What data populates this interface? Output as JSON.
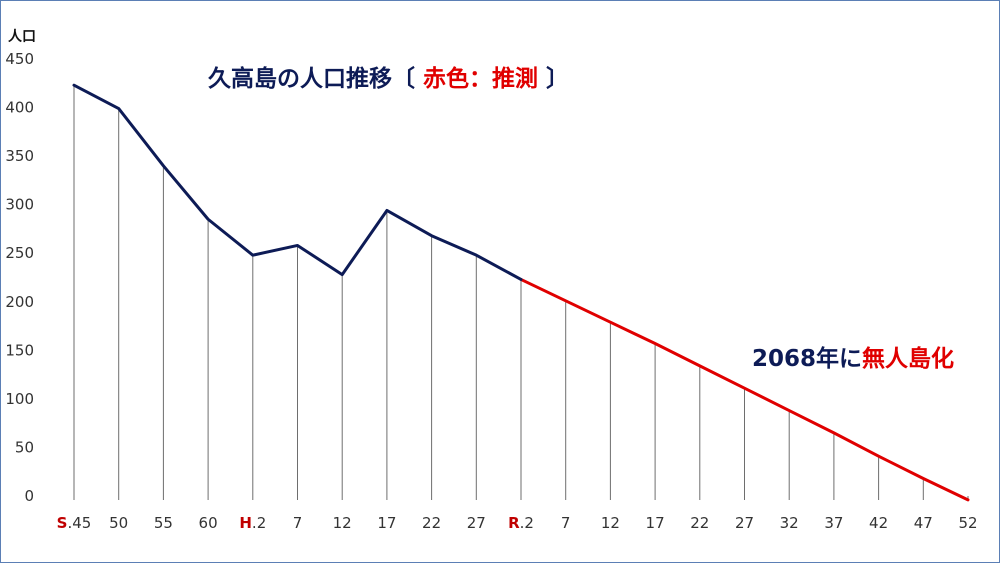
{
  "chart_data": {
    "type": "line",
    "title_parts": [
      {
        "text": "久高島の人口推移〔 ",
        "color": "#0d1b56"
      },
      {
        "text": "赤色：推測",
        "color": "#e00000"
      },
      {
        "text": " 〕",
        "color": "#0d1b56"
      }
    ],
    "ylabel": "人口",
    "ylim": [
      0,
      450
    ],
    "yticks": [
      0,
      50,
      100,
      150,
      200,
      250,
      300,
      350,
      400,
      450
    ],
    "x_labels": [
      {
        "era": "S",
        "rest": ".45"
      },
      {
        "era": "",
        "rest": "50"
      },
      {
        "era": "",
        "rest": "55"
      },
      {
        "era": "",
        "rest": "60"
      },
      {
        "era": "H",
        "rest": ".2"
      },
      {
        "era": "",
        "rest": "7"
      },
      {
        "era": "",
        "rest": "12"
      },
      {
        "era": "",
        "rest": "17"
      },
      {
        "era": "",
        "rest": "22"
      },
      {
        "era": "",
        "rest": "27"
      },
      {
        "era": "R",
        "rest": ".2"
      },
      {
        "era": "",
        "rest": "7"
      },
      {
        "era": "",
        "rest": "12"
      },
      {
        "era": "",
        "rest": "17"
      },
      {
        "era": "",
        "rest": "22"
      },
      {
        "era": "",
        "rest": "27"
      },
      {
        "era": "",
        "rest": "32"
      },
      {
        "era": "",
        "rest": "37"
      },
      {
        "era": "",
        "rest": "42"
      },
      {
        "era": "",
        "rest": "47"
      },
      {
        "era": "",
        "rest": "52"
      }
    ],
    "values": [
      423,
      399,
      340,
      285,
      248,
      258,
      228,
      294,
      268,
      248,
      223,
      201,
      179,
      157,
      134,
      111,
      88,
      65,
      41,
      18,
      -4
    ],
    "observed_count": 11,
    "colors": {
      "observed": "#0d1b56",
      "projected": "#e00000"
    },
    "annotation_parts": [
      {
        "text": "2068年に",
        "color": "#0d1b56"
      },
      {
        "text": "無人島化",
        "color": "#e00000"
      }
    ]
  }
}
